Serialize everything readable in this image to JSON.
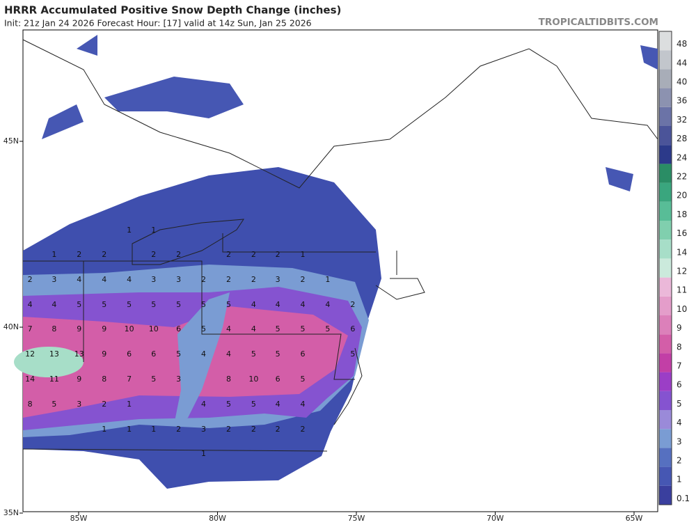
{
  "header": {
    "title": "HRRR Accumulated Positive Snow Depth Change (inches)",
    "subtitle": "Init: 21z Jan 24 2026   Forecast Hour: [17]   valid at 14z Sun, Jan 25 2026",
    "site": "TROPICALTIDBITS.COM"
  },
  "map": {
    "lon_ticks": [
      {
        "value": -85,
        "label": "85W"
      },
      {
        "value": -80,
        "label": "80W"
      },
      {
        "value": -75,
        "label": "75W"
      },
      {
        "value": -70,
        "label": "70W"
      },
      {
        "value": -65,
        "label": "65W"
      }
    ],
    "lat_ticks": [
      {
        "value": 45,
        "label": "45N"
      },
      {
        "value": 40,
        "label": "40N"
      },
      {
        "value": 35,
        "label": "35N"
      }
    ],
    "snow_labels": {
      "lons": [
        -86.75,
        -85.88,
        -84.98,
        -84.08,
        -83.18,
        -82.3,
        -81.4,
        -80.5,
        -79.6,
        -78.7,
        -77.83,
        -76.93,
        -76.03,
        -75.13
      ],
      "lats": [
        42.6,
        41.95,
        41.27,
        40.6,
        39.94,
        39.27,
        38.6,
        37.92,
        37.25,
        36.59
      ],
      "rows": [
        [
          null,
          null,
          null,
          null,
          1,
          1,
          null,
          null,
          null,
          null,
          null,
          null,
          null,
          null
        ],
        [
          null,
          1,
          2,
          2,
          null,
          2,
          2,
          null,
          2,
          2,
          2,
          1,
          null,
          null
        ],
        [
          2,
          3,
          4,
          4,
          4,
          3,
          3,
          2,
          2,
          2,
          3,
          2,
          1,
          null
        ],
        [
          4,
          4,
          5,
          5,
          5,
          5,
          5,
          5,
          5,
          4,
          4,
          4,
          4,
          2
        ],
        [
          7,
          8,
          9,
          9,
          10,
          10,
          6,
          5,
          4,
          4,
          5,
          5,
          5,
          6
        ],
        [
          12,
          13,
          13,
          9,
          6,
          6,
          5,
          4,
          4,
          5,
          5,
          6,
          null,
          5
        ],
        [
          14,
          11,
          9,
          8,
          7,
          5,
          3,
          null,
          8,
          10,
          6,
          5,
          null,
          null
        ],
        [
          8,
          5,
          3,
          2,
          1,
          null,
          null,
          4,
          5,
          5,
          4,
          4,
          null,
          null
        ],
        [
          null,
          null,
          null,
          1,
          1,
          1,
          2,
          3,
          2,
          2,
          2,
          2,
          null,
          null
        ],
        [
          null,
          null,
          null,
          null,
          null,
          null,
          null,
          1,
          null,
          null,
          null,
          null,
          null,
          null
        ]
      ]
    }
  },
  "colorbar": {
    "levels": [
      {
        "value": 0.1,
        "color": "#3a3f9e"
      },
      {
        "value": 1,
        "color": "#4657b3"
      },
      {
        "value": 2,
        "color": "#5670c0"
      },
      {
        "value": 3,
        "color": "#7a9cd3"
      },
      {
        "value": 4,
        "color": "#9a8ad9"
      },
      {
        "value": 5,
        "color": "#8553d0"
      },
      {
        "value": 6,
        "color": "#9b3ec6"
      },
      {
        "value": 7,
        "color": "#c23fa6"
      },
      {
        "value": 8,
        "color": "#d35ea8"
      },
      {
        "value": 9,
        "color": "#dc80ba"
      },
      {
        "value": 10,
        "color": "#e49dca"
      },
      {
        "value": 11,
        "color": "#ebb8d9"
      },
      {
        "value": 12,
        "color": "#cbeadc"
      },
      {
        "value": 14,
        "color": "#a7dec8"
      },
      {
        "value": 16,
        "color": "#80cfae"
      },
      {
        "value": 18,
        "color": "#58bd97"
      },
      {
        "value": 20,
        "color": "#3aa67e"
      },
      {
        "value": 22,
        "color": "#2a8d65"
      },
      {
        "value": 24,
        "color": "#2c3a8a"
      },
      {
        "value": 28,
        "color": "#4b5499"
      },
      {
        "value": 32,
        "color": "#6b73a7"
      },
      {
        "value": 36,
        "color": "#8c92b0"
      },
      {
        "value": 40,
        "color": "#a8adb8"
      },
      {
        "value": 44,
        "color": "#c2c6cc"
      },
      {
        "value": 48,
        "color": "#dcdedf"
      }
    ]
  }
}
